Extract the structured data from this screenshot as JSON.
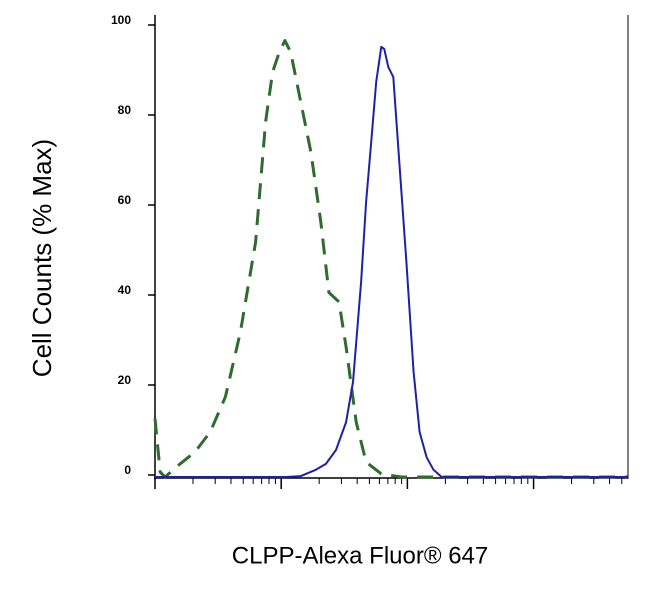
{
  "chart_data": {
    "type": "line",
    "x_label": "CLPP-Alexa Fluor® 647",
    "y_label": "Cell Counts (% Max)",
    "xscale": "log",
    "xlim": [
      1,
      5600
    ],
    "xticks": [
      1,
      10,
      100,
      1000
    ],
    "ylim": [
      0,
      100
    ],
    "yticks": [
      0,
      20,
      40,
      60,
      80,
      100
    ],
    "series": [
      {
        "color": "#2f6b2f",
        "dashed": true,
        "x": [
          1,
          1.1,
          1.2,
          1.58,
          2.08,
          2.74,
          3.61,
          4.75,
          6.27,
          7.52,
          8.55,
          9.55,
          10.7,
          11.9,
          14.3,
          17.2,
          20.6,
          23.9,
          28.7,
          32.7,
          39.3,
          47.1,
          62.1,
          89.6,
          224,
          5560
        ],
        "values": [
          13,
          1.1,
          0,
          2.9,
          5.6,
          10,
          17.8,
          32.2,
          52.2,
          78.9,
          90,
          94,
          97,
          94.4,
          83.3,
          72.2,
          56.7,
          41,
          38.9,
          28.9,
          12.2,
          3.3,
          0.7,
          0,
          0,
          0
        ]
      },
      {
        "color": "#1f1fa8",
        "dashed": false,
        "x": [
          1,
          10.9,
          14.3,
          18.8,
          22.6,
          27.2,
          32.7,
          37.1,
          43.0,
          47.1,
          51.7,
          56.6,
          62.1,
          65.6,
          70.6,
          77.3,
          86.3,
          98.2,
          112,
          125,
          142,
          161,
          187,
          269,
          5560
        ],
        "values": [
          0,
          0,
          0.2,
          1.6,
          2.9,
          6,
          12.2,
          21.1,
          43.3,
          61.1,
          74.4,
          87.8,
          95.6,
          95.1,
          91.1,
          88.9,
          70,
          47.8,
          23.3,
          10,
          4.4,
          1.6,
          0,
          0,
          0
        ]
      }
    ]
  }
}
